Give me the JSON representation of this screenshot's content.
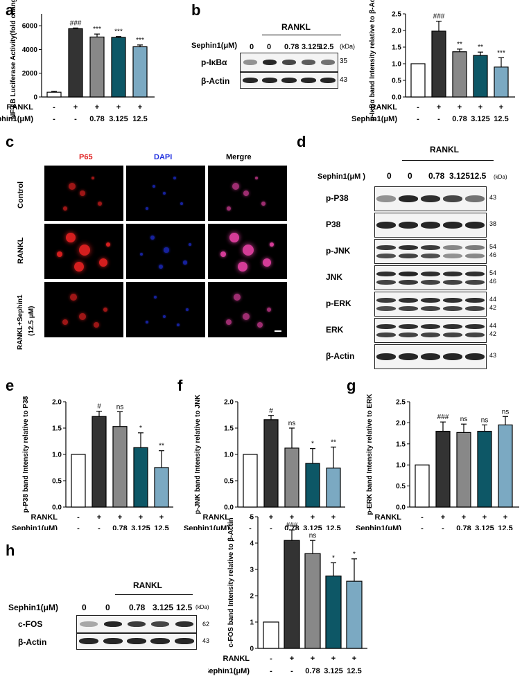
{
  "colors": {
    "untreated": "#ffffff",
    "rankl": "#333333",
    "s078": "#888888",
    "s3125": "#0d5766",
    "s125": "#7ba9c2",
    "p65": "#e02020",
    "dapi": "#2030e0"
  },
  "treatments": {
    "rankl_label": "RANKL",
    "sephin_label": "Sephin1(μM)",
    "rankl_row": [
      "-",
      "+",
      "+",
      "+",
      "+"
    ],
    "sephin_row": [
      "-",
      "-",
      "0.78",
      "3.125",
      "12.5"
    ]
  },
  "blot_conc": [
    "0",
    "0",
    "0.78",
    "3.125",
    "12.5"
  ],
  "panels": {
    "a": {
      "letter": "a"
    },
    "b": {
      "letter": "b",
      "rankl": "RANKL",
      "sephin": "Sephin1(μM)",
      "kda": "(kDa)",
      "rows": [
        {
          "label": "p-IκBα",
          "mw": "35"
        },
        {
          "label": "β-Actin",
          "mw": "43"
        }
      ]
    },
    "c": {
      "letter": "c",
      "cols": [
        "P65",
        "DAPI",
        "Mergre"
      ],
      "rows": [
        "Control",
        "RANKL",
        "RANKL+Sephin1"
      ],
      "row3_sub": "(12.5 μM)"
    },
    "d": {
      "letter": "d",
      "rankl": "RANKL",
      "sephin": "Sephin1(μM )",
      "kda": "(kDa)",
      "rows": [
        {
          "label": "p-P38",
          "mw": [
            "43"
          ]
        },
        {
          "label": "P38",
          "mw": [
            "38"
          ]
        },
        {
          "label": "p-JNK",
          "mw": [
            "54",
            "46"
          ]
        },
        {
          "label": "JNK",
          "mw": [
            "54",
            "46"
          ]
        },
        {
          "label": "p-ERK",
          "mw": [
            "44",
            "42"
          ]
        },
        {
          "label": "ERK",
          "mw": [
            "44",
            "42"
          ]
        },
        {
          "label": "β-Actin",
          "mw": [
            "43"
          ]
        }
      ]
    },
    "e": {
      "letter": "e"
    },
    "f": {
      "letter": "f"
    },
    "g": {
      "letter": "g"
    },
    "h": {
      "letter": "h",
      "rankl": "RANKL",
      "sephin": "Sephin1(μM)",
      "kda": "(kDa)",
      "rows": [
        {
          "label": "c-FOS",
          "mw": "62"
        },
        {
          "label": "β-Actin",
          "mw": "43"
        }
      ]
    }
  },
  "chart_data": [
    {
      "id": "a",
      "type": "bar",
      "ylabel": "NF-κB Luciferase Activity(fold change)",
      "ylim": [
        0,
        7000
      ],
      "yticks": [
        0,
        2000,
        4000,
        6000
      ],
      "values": [
        400,
        5750,
        5050,
        5020,
        4230
      ],
      "errors": [
        80,
        60,
        250,
        70,
        150
      ],
      "sig": [
        "",
        "###",
        "***",
        "***",
        "***"
      ]
    },
    {
      "id": "b",
      "type": "bar",
      "ylabel": "p-IκBα band Intensity relative to β-Actin",
      "ylim": [
        0,
        2.5
      ],
      "yticks": [
        0.0,
        0.5,
        1.0,
        1.5,
        2.0,
        2.5
      ],
      "values": [
        1.0,
        1.98,
        1.36,
        1.25,
        0.9
      ],
      "errors": [
        0,
        0.3,
        0.08,
        0.1,
        0.28
      ],
      "sig": [
        "",
        "###",
        "**",
        "**",
        "***"
      ]
    },
    {
      "id": "e",
      "type": "bar",
      "ylabel": "p-P38 band Intensity relative to P38",
      "ylim": [
        0,
        2.0
      ],
      "yticks": [
        0.0,
        0.5,
        1.0,
        1.5,
        2.0
      ],
      "values": [
        1.0,
        1.72,
        1.53,
        1.13,
        0.75
      ],
      "errors": [
        0,
        0.1,
        0.28,
        0.28,
        0.32
      ],
      "sig": [
        "",
        "#",
        "ns",
        "*",
        "**"
      ]
    },
    {
      "id": "f",
      "type": "bar",
      "ylabel": "p-JNK band Intensity relative to JNK",
      "ylim": [
        0,
        2.0
      ],
      "yticks": [
        0.0,
        0.5,
        1.0,
        1.5,
        2.0
      ],
      "values": [
        1.0,
        1.66,
        1.12,
        0.83,
        0.74
      ],
      "errors": [
        0,
        0.08,
        0.38,
        0.28,
        0.4
      ],
      "sig": [
        "",
        "#",
        "ns",
        "*",
        "**"
      ]
    },
    {
      "id": "g",
      "type": "bar",
      "ylabel": "p-ERK band Intensity relative to ERK",
      "ylim": [
        0,
        2.5
      ],
      "yticks": [
        0.0,
        0.5,
        1.0,
        1.5,
        2.0,
        2.5
      ],
      "values": [
        1.0,
        1.8,
        1.77,
        1.8,
        1.95
      ],
      "errors": [
        0,
        0.22,
        0.2,
        0.15,
        0.2
      ],
      "sig": [
        "",
        "###",
        "ns",
        "ns",
        "ns"
      ]
    },
    {
      "id": "h",
      "type": "bar",
      "ylabel": "c-FOS band Intensity relative to β-Actin",
      "ylim": [
        0,
        5
      ],
      "yticks": [
        0,
        1,
        2,
        3,
        4,
        5
      ],
      "values": [
        1.0,
        4.1,
        3.6,
        2.75,
        2.55
      ],
      "errors": [
        0,
        0.4,
        0.5,
        0.5,
        0.85
      ],
      "sig": [
        "",
        "###",
        "ns",
        "*",
        "*"
      ]
    }
  ]
}
